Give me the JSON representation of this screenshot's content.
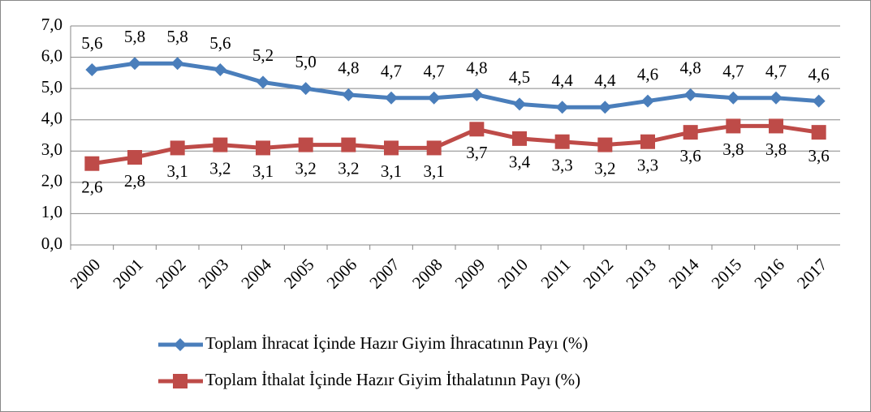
{
  "chart_data": {
    "type": "line",
    "categories": [
      "2000",
      "2001",
      "2002",
      "2003",
      "2004",
      "2005",
      "2006",
      "2007",
      "2008",
      "2009",
      "2010",
      "2011",
      "2012",
      "2013",
      "2014",
      "2015",
      "2016",
      "2017"
    ],
    "series": [
      {
        "name": "Toplam İhracat İçinde Hazır Giyim İhracatının Payı (%)",
        "color": "#4a7ebb",
        "marker": "diamond",
        "values": [
          5.6,
          5.8,
          5.8,
          5.6,
          5.2,
          5.0,
          4.8,
          4.7,
          4.7,
          4.8,
          4.5,
          4.4,
          4.4,
          4.6,
          4.8,
          4.7,
          4.7,
          4.6
        ],
        "value_labels": [
          "5,6",
          "5,8",
          "5,8",
          "5,6",
          "5,2",
          "5,0",
          "4,8",
          "4,7",
          "4,7",
          "4,8",
          "4,5",
          "4,4",
          "4,4",
          "4,6",
          "4,8",
          "4,7",
          "4,7",
          "4,6"
        ]
      },
      {
        "name": "Toplam İthalat İçinde Hazır Giyim İthalatının Payı (%)",
        "color": "#be4b48",
        "marker": "square",
        "values": [
          2.6,
          2.8,
          3.1,
          3.2,
          3.1,
          3.2,
          3.2,
          3.1,
          3.1,
          3.7,
          3.4,
          3.3,
          3.2,
          3.3,
          3.6,
          3.8,
          3.8,
          3.6
        ],
        "value_labels": [
          "2,6",
          "2,8",
          "3,1",
          "3,2",
          "3,1",
          "3,2",
          "3,2",
          "3,1",
          "3,1",
          "3,7",
          "3,4",
          "3,3",
          "3,2",
          "3,3",
          "3,6",
          "3,8",
          "3,8",
          "3,6"
        ]
      }
    ],
    "ylim": [
      0,
      7
    ],
    "yticks": [
      {
        "value": 0,
        "label": "0,0"
      },
      {
        "value": 1,
        "label": "1,0"
      },
      {
        "value": 2,
        "label": "2,0"
      },
      {
        "value": 3,
        "label": "3,0"
      },
      {
        "value": 4,
        "label": "4,0"
      },
      {
        "value": 5,
        "label": "5,0"
      },
      {
        "value": 6,
        "label": "6,0"
      },
      {
        "value": 7,
        "label": "7,0"
      }
    ],
    "grid": true,
    "legend": "bottom"
  }
}
